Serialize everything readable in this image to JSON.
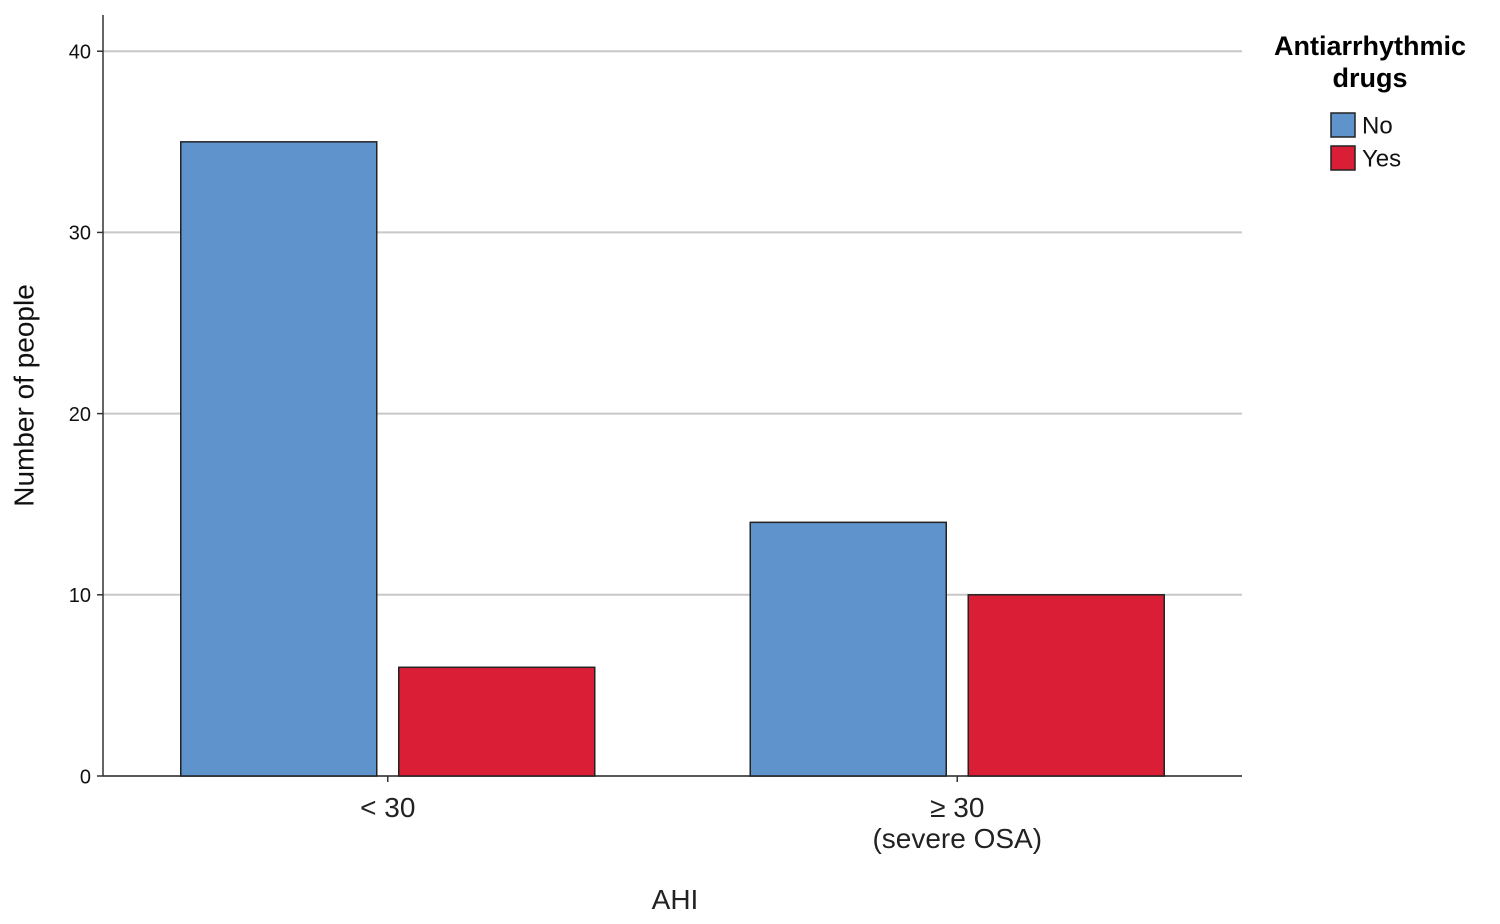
{
  "chart_data": {
    "type": "bar",
    "y_label": "Number of people",
    "x_label": "AHI",
    "categories": [
      "< 30",
      "≥ 30\n(severe OSA)"
    ],
    "legend_title": "Antiarrhythmic drugs",
    "legend_position": "right",
    "series": [
      {
        "name": "No",
        "color": "#5e93cb",
        "values": [
          35,
          14
        ]
      },
      {
        "name": "Yes",
        "color": "#d91e36",
        "values": [
          6,
          10
        ]
      }
    ],
    "ylim": [
      0,
      42
    ],
    "yticks": [
      0,
      10,
      20,
      30,
      40
    ],
    "grid": true
  }
}
